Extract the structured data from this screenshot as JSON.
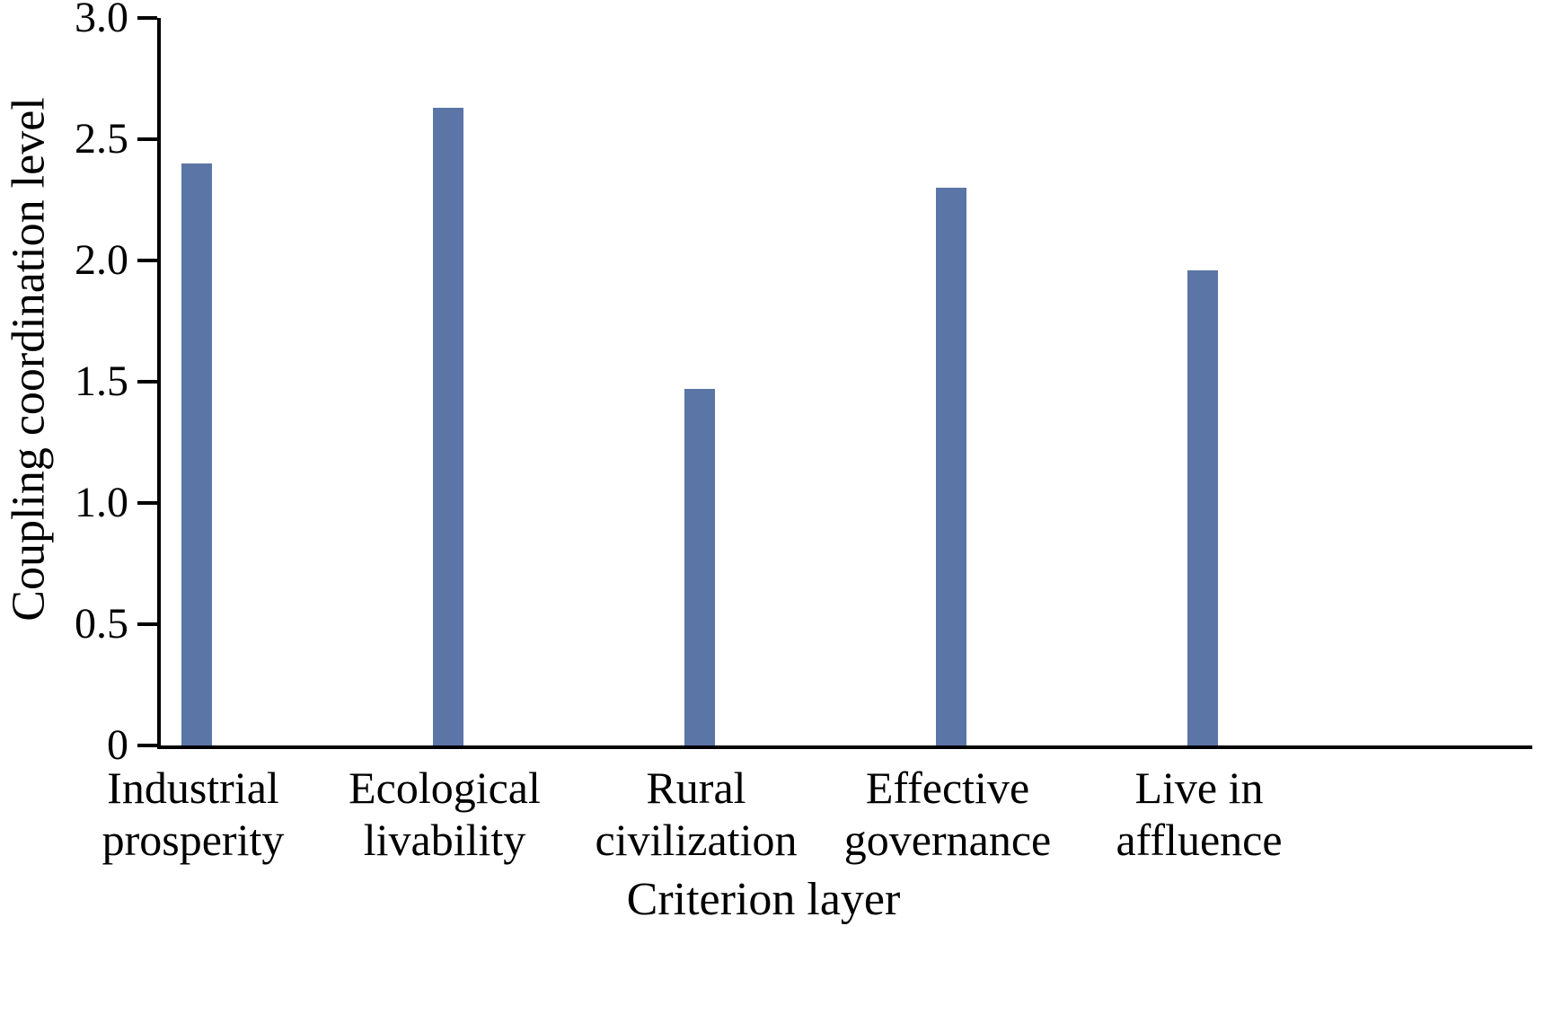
{
  "chart_data": {
    "type": "bar",
    "categories": [
      "Industrial prosperity",
      "Ecological livability",
      "Rural civilization",
      "Effective governance",
      "Live in affluence"
    ],
    "values": [
      2.4,
      2.63,
      1.47,
      2.3,
      1.96
    ],
    "title": "",
    "xlabel": "Criterion layer",
    "ylabel": "Coupling coordination level",
    "ylim": [
      0,
      3.0
    ],
    "yticks": [
      0,
      0.5,
      1.0,
      1.5,
      2.0,
      2.5,
      3.0
    ],
    "ytick_labels": [
      "0",
      "0.5",
      "1.0",
      "1.5",
      "2.0",
      "2.5",
      "3.0"
    ],
    "bar_color": "#5b75a6",
    "axis_color": "#000000",
    "grid": false,
    "legend": "none"
  }
}
